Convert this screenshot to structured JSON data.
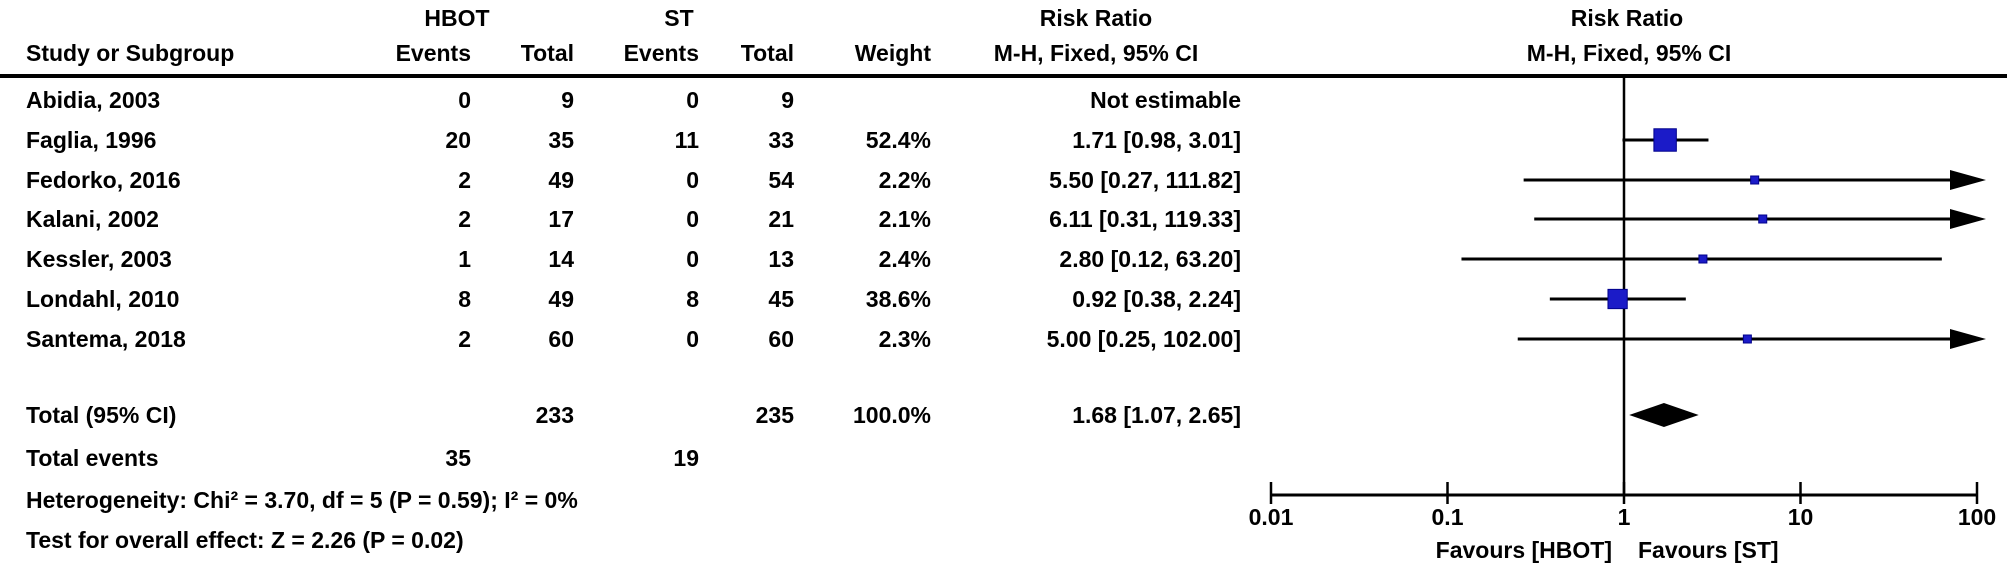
{
  "header": {
    "group1_label": "HBOT",
    "group2_label": "ST",
    "effect_label_left": "Risk Ratio",
    "effect_label_right": "Risk Ratio",
    "method_label_left": "M-H, Fixed, 95% CI",
    "method_label_right": "M-H, Fixed, 95% CI",
    "study_col": "Study or Subgroup",
    "events_col_1": "Events",
    "total_col_1": "Total",
    "events_col_2": "Events",
    "total_col_2": "Total",
    "weight_col": "Weight"
  },
  "footer": {
    "heterogeneity": "Heterogeneity: Chi² = 3.70, df = 5 (P = 0.59); I² = 0%",
    "overall_effect": "Test for overall effect: Z = 2.26 (P = 0.02)"
  },
  "chart_data": {
    "type": "forest",
    "scale": "log10",
    "null_line": 1,
    "x_ticks": [
      "0.01",
      "0.1",
      "1",
      "10",
      "100"
    ],
    "x_tick_values": [
      0.01,
      0.1,
      1,
      10,
      100
    ],
    "xlim": [
      0.01,
      100
    ],
    "favours_left": "Favours [HBOT]",
    "favours_right": "Favours [ST]",
    "marker_color": "#1b1bc8",
    "line_color": "#000000",
    "diamond_color": "#000000",
    "studies": [
      {
        "name": "Abidia, 2003",
        "e1": "0",
        "t1": "9",
        "e2": "0",
        "t2": "9",
        "weight": "",
        "ci_text": "Not estimable",
        "estimable": false
      },
      {
        "name": "Faglia, 1996",
        "e1": "20",
        "t1": "35",
        "e2": "11",
        "t2": "33",
        "weight": "52.4%",
        "ci_text": "1.71 [0.98, 3.01]",
        "estimable": true,
        "rr": 1.71,
        "lo": 0.98,
        "hi": 3.01,
        "w": 52.4
      },
      {
        "name": "Fedorko, 2016",
        "e1": "2",
        "t1": "49",
        "e2": "0",
        "t2": "54",
        "weight": "2.2%",
        "ci_text": "5.50 [0.27, 111.82]",
        "estimable": true,
        "rr": 5.5,
        "lo": 0.27,
        "hi": 111.82,
        "w": 2.2
      },
      {
        "name": "Kalani, 2002",
        "e1": "2",
        "t1": "17",
        "e2": "0",
        "t2": "21",
        "weight": "2.1%",
        "ci_text": "6.11 [0.31, 119.33]",
        "estimable": true,
        "rr": 6.11,
        "lo": 0.31,
        "hi": 119.33,
        "w": 2.1
      },
      {
        "name": "Kessler, 2003",
        "e1": "1",
        "t1": "14",
        "e2": "0",
        "t2": "13",
        "weight": "2.4%",
        "ci_text": "2.80 [0.12, 63.20]",
        "estimable": true,
        "rr": 2.8,
        "lo": 0.12,
        "hi": 63.2,
        "w": 2.4
      },
      {
        "name": "Londahl, 2010",
        "e1": "8",
        "t1": "49",
        "e2": "8",
        "t2": "45",
        "weight": "38.6%",
        "ci_text": "0.92 [0.38, 2.24]",
        "estimable": true,
        "rr": 0.92,
        "lo": 0.38,
        "hi": 2.24,
        "w": 38.6
      },
      {
        "name": "Santema, 2018",
        "e1": "2",
        "t1": "60",
        "e2": "0",
        "t2": "60",
        "weight": "2.3%",
        "ci_text": "5.00 [0.25, 102.00]",
        "estimable": true,
        "rr": 5.0,
        "lo": 0.25,
        "hi": 102.0,
        "w": 2.3
      }
    ],
    "total": {
      "label": "Total (95% CI)",
      "t1": "233",
      "t2": "235",
      "weight": "100.0%",
      "ci_text": "1.68 [1.07, 2.65]",
      "rr": 1.68,
      "lo": 1.07,
      "hi": 2.65
    },
    "total_events": {
      "label": "Total events",
      "e1": "35",
      "e2": "19"
    }
  }
}
